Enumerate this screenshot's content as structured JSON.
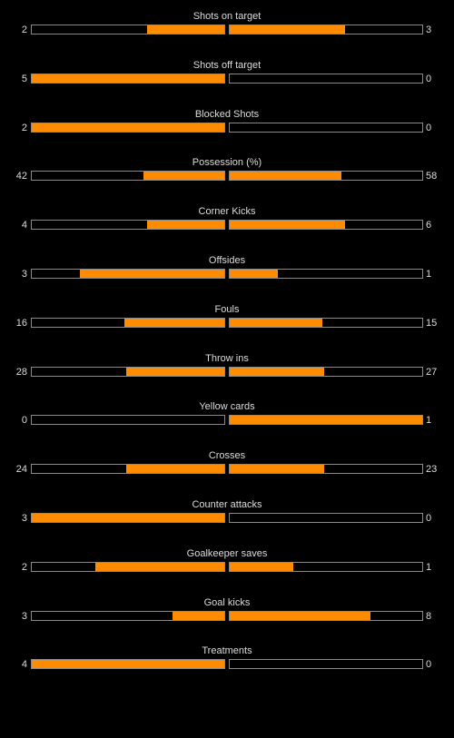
{
  "colors": {
    "background": "#000000",
    "bar_fill": "#ff8c00",
    "bar_border": "#8a8a8a",
    "text": "#dcdcdc"
  },
  "stats": [
    {
      "name": "Shots on target",
      "home": "2",
      "away": "3",
      "home_fill": 0.4,
      "away_fill": 0.6
    },
    {
      "name": "Shots off target",
      "home": "5",
      "away": "0",
      "home_fill": 1.0,
      "away_fill": 0.0
    },
    {
      "name": "Blocked Shots",
      "home": "2",
      "away": "0",
      "home_fill": 1.0,
      "away_fill": 0.0
    },
    {
      "name": "Possession (%)",
      "home": "42",
      "away": "58",
      "home_fill": 0.42,
      "away_fill": 0.58
    },
    {
      "name": "Corner Kicks",
      "home": "4",
      "away": "6",
      "home_fill": 0.4,
      "away_fill": 0.6
    },
    {
      "name": "Offsides",
      "home": "3",
      "away": "1",
      "home_fill": 0.75,
      "away_fill": 0.25
    },
    {
      "name": "Fouls",
      "home": "16",
      "away": "15",
      "home_fill": 0.52,
      "away_fill": 0.48
    },
    {
      "name": "Throw ins",
      "home": "28",
      "away": "27",
      "home_fill": 0.51,
      "away_fill": 0.49
    },
    {
      "name": "Yellow cards",
      "home": "0",
      "away": "1",
      "home_fill": 0.0,
      "away_fill": 1.0
    },
    {
      "name": "Crosses",
      "home": "24",
      "away": "23",
      "home_fill": 0.51,
      "away_fill": 0.49
    },
    {
      "name": "Counter attacks",
      "home": "3",
      "away": "0",
      "home_fill": 1.0,
      "away_fill": 0.0
    },
    {
      "name": "Goalkeeper saves",
      "home": "2",
      "away": "1",
      "home_fill": 0.67,
      "away_fill": 0.33
    },
    {
      "name": "Goal kicks",
      "home": "3",
      "away": "8",
      "home_fill": 0.27,
      "away_fill": 0.73
    },
    {
      "name": "Treatments",
      "home": "4",
      "away": "0",
      "home_fill": 1.0,
      "away_fill": 0.0
    }
  ]
}
